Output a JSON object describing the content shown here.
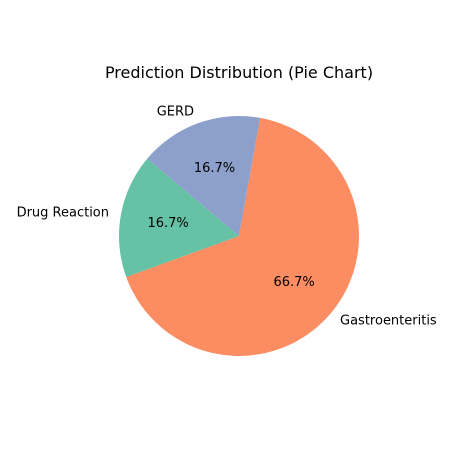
{
  "chart_data": {
    "type": "pie",
    "title": "Prediction Distribution (Pie Chart)",
    "categories": [
      "Gastroenteritis",
      "GERD",
      "Drug Reaction"
    ],
    "values": [
      66.7,
      16.7,
      16.7
    ],
    "percent_labels": [
      "66.7%",
      "16.7%",
      "16.7%"
    ],
    "colors": [
      "#fc8d62",
      "#8da0cb",
      "#66c2a5"
    ]
  }
}
